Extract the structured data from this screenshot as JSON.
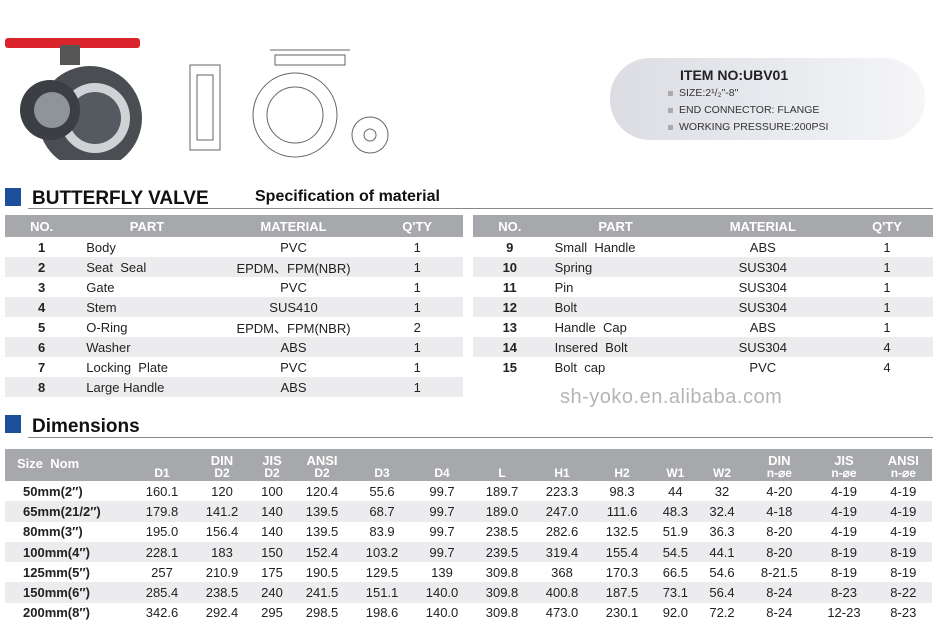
{
  "info": {
    "item_no": "ITEM NO:UBV01",
    "lines": [
      "SIZE:2¹/₂\"-8\"",
      "END CONNECTOR: FLANGE",
      "WORKING PRESSURE:200PSI"
    ]
  },
  "material_section": {
    "title": "BUTTERFLY VALVE",
    "subtitle": "Specification of material"
  },
  "material_table": {
    "headers": [
      "NO.",
      "PART",
      "MATERIAL",
      "Q'TY"
    ],
    "left_rows": [
      [
        "1",
        "Body",
        "PVC",
        "1"
      ],
      [
        "2",
        "Seat  Seal",
        "EPDM、FPM(NBR)",
        "1"
      ],
      [
        "3",
        "Gate",
        "PVC",
        "1"
      ],
      [
        "4",
        "Stem",
        "SUS410",
        "1"
      ],
      [
        "5",
        "O-Ring",
        "EPDM、FPM(NBR)",
        "2"
      ],
      [
        "6",
        "Washer",
        "ABS",
        "1"
      ],
      [
        "7",
        "Locking  Plate",
        "PVC",
        "1"
      ],
      [
        "8",
        "Large Handle",
        "ABS",
        "1"
      ]
    ],
    "right_rows": [
      [
        "9",
        "Small  Handle",
        "ABS",
        "1"
      ],
      [
        "10",
        "Spring",
        "SUS304",
        "1"
      ],
      [
        "11",
        "Pin",
        "SUS304",
        "1"
      ],
      [
        "12",
        "Bolt",
        "SUS304",
        "1"
      ],
      [
        "13",
        "Handle  Cap",
        "ABS",
        "1"
      ],
      [
        "14",
        "Insered  Bolt",
        "SUS304",
        "4"
      ],
      [
        "15",
        "Bolt  cap",
        "PVC",
        "4"
      ]
    ]
  },
  "watermark": "sh-yoko.en.alibaba.com",
  "dimensions_section": {
    "title": "Dimensions"
  },
  "dimensions_table": {
    "headers": [
      {
        "top": "Size  Nom",
        "bottom": ""
      },
      {
        "top": "",
        "bottom": "D1"
      },
      {
        "top": "DIN",
        "bottom": "D2"
      },
      {
        "top": "JIS",
        "bottom": "D2"
      },
      {
        "top": "ANSI",
        "bottom": "D2"
      },
      {
        "top": "",
        "bottom": "D3"
      },
      {
        "top": "",
        "bottom": "D4"
      },
      {
        "top": "",
        "bottom": "L"
      },
      {
        "top": "",
        "bottom": "H1"
      },
      {
        "top": "",
        "bottom": "H2"
      },
      {
        "top": "",
        "bottom": "W1"
      },
      {
        "top": "",
        "bottom": "W2"
      },
      {
        "top": "DIN",
        "bottom": "n-⌀e"
      },
      {
        "top": "JIS",
        "bottom": "n-⌀e"
      },
      {
        "top": "ANSI",
        "bottom": "n-⌀e"
      }
    ],
    "rows": [
      [
        "50mm(2″)",
        "160.1",
        "120",
        "100",
        "120.4",
        "55.6",
        "99.7",
        "189.7",
        "223.3",
        "98.3",
        "44",
        "32",
        "4-20",
        "4-19",
        "4-19"
      ],
      [
        "65mm(21/2″)",
        "179.8",
        "141.2",
        "140",
        "139.5",
        "68.7",
        "99.7",
        "189.0",
        "247.0",
        "111.6",
        "48.3",
        "32.4",
        "4-18",
        "4-19",
        "4-19"
      ],
      [
        "80mm(3″)",
        "195.0",
        "156.4",
        "140",
        "139.5",
        "83.9",
        "99.7",
        "238.5",
        "282.6",
        "132.5",
        "51.9",
        "36.3",
        "8-20",
        "4-19",
        "4-19"
      ],
      [
        "100mm(4″)",
        "228.1",
        "183",
        "150",
        "152.4",
        "103.2",
        "99.7",
        "239.5",
        "319.4",
        "155.4",
        "54.5",
        "44.1",
        "8-20",
        "8-19",
        "8-19"
      ],
      [
        "125mm(5″)",
        "257",
        "210.9",
        "175",
        "190.5",
        "129.5",
        "139",
        "309.8",
        "368",
        "170.3",
        "66.5",
        "54.6",
        "8-21.5",
        "8-19",
        "8-19"
      ],
      [
        "150mm(6″)",
        "285.4",
        "238.5",
        "240",
        "241.5",
        "151.1",
        "140.0",
        "309.8",
        "400.8",
        "187.5",
        "73.1",
        "56.4",
        "8-24",
        "8-23",
        "8-22"
      ],
      [
        "200mm(8″)",
        "342.6",
        "292.4",
        "295",
        "298.5",
        "198.6",
        "140.0",
        "309.8",
        "473.0",
        "230.1",
        "92.0",
        "72.2",
        "8-24",
        "12-23",
        "8-23"
      ]
    ]
  },
  "colors": {
    "accent": "#1d4f9c",
    "header_gray": "#a7a8ab",
    "handle_red": "#d8242a",
    "row_alt": "#ececee"
  }
}
